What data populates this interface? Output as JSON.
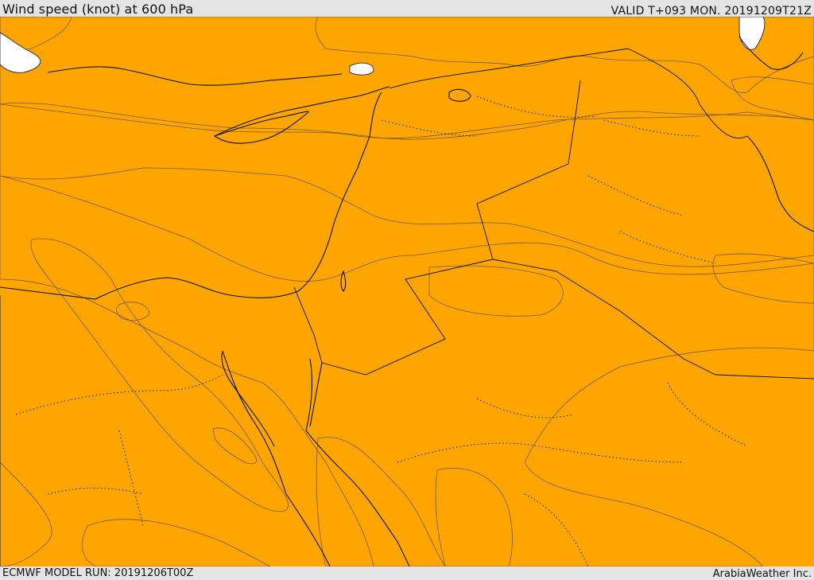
{
  "header": {
    "title": "Wind speed (knot) at 600 hPa",
    "valid": "VALID T+093 MON. 20191209T21Z"
  },
  "footer": {
    "model_run": "ECMWF MODEL RUN: 20191206T00Z",
    "credit": "ArabiaWeather Inc."
  },
  "map": {
    "colors": {
      "land_low": "#fddbaa",
      "band_1": "#ffff00",
      "band_2": "#ffdd00",
      "band_3": "#ffbb00",
      "band_4": "#ffa500",
      "band_5": "#ff7f11",
      "band_6": "#ff6622",
      "white_area": "#ffffff"
    }
  }
}
